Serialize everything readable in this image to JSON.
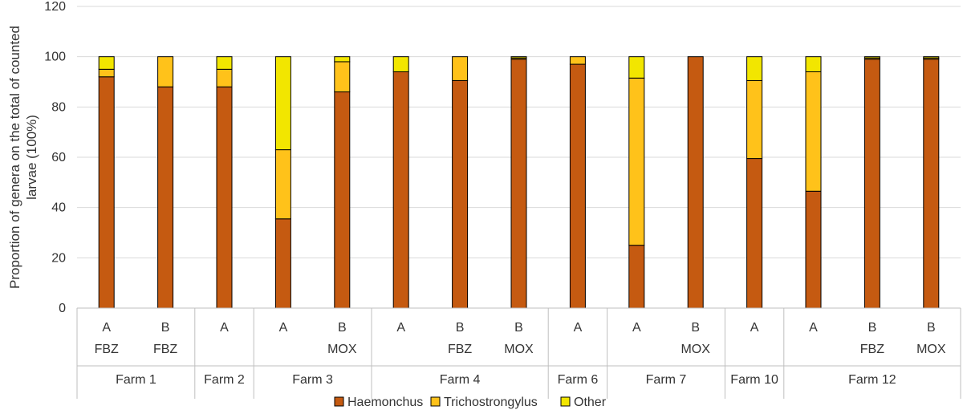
{
  "chart_data": {
    "type": "bar",
    "stacked": true,
    "ylabel": "Proportion of genera on the total of counted larvae (100%)",
    "ylabel_lines": [
      "Proportion of genera on the total of counted",
      "larvae (100%)"
    ],
    "ylim": [
      0,
      120
    ],
    "yticks": [
      0,
      20,
      40,
      60,
      80,
      100,
      120
    ],
    "grid": true,
    "legend_position": "bottom",
    "groups": [
      {
        "name": "Farm 1",
        "bars": [
          {
            "label": "A",
            "sub": "FBZ"
          },
          {
            "label": "B",
            "sub": "FBZ"
          }
        ]
      },
      {
        "name": "Farm 2",
        "bars": [
          {
            "label": "A",
            "sub": ""
          }
        ]
      },
      {
        "name": "Farm 3",
        "bars": [
          {
            "label": "A",
            "sub": ""
          },
          {
            "label": "B",
            "sub": "MOX"
          }
        ]
      },
      {
        "name": "Farm 4",
        "bars": [
          {
            "label": "A",
            "sub": ""
          },
          {
            "label": "B",
            "sub": "FBZ"
          },
          {
            "label": "B",
            "sub": "MOX"
          }
        ]
      },
      {
        "name": "Farm 6",
        "bars": [
          {
            "label": "A",
            "sub": ""
          }
        ]
      },
      {
        "name": "Farm 7",
        "bars": [
          {
            "label": "A",
            "sub": ""
          },
          {
            "label": "B",
            "sub": "MOX"
          }
        ]
      },
      {
        "name": "Farm 10",
        "bars": [
          {
            "label": "A",
            "sub": ""
          }
        ]
      },
      {
        "name": "Farm 12",
        "bars": [
          {
            "label": "A",
            "sub": ""
          },
          {
            "label": "B",
            "sub": "FBZ"
          },
          {
            "label": "B",
            "sub": "MOX"
          }
        ]
      }
    ],
    "series": [
      {
        "name": "Haemonchus",
        "color": "#C55A11",
        "values": [
          92,
          88,
          88,
          35.5,
          86,
          94,
          90.5,
          99,
          97,
          25,
          100,
          59.5,
          46.5,
          99,
          99
        ]
      },
      {
        "name": "Trichostrongylus",
        "color": "#FFC21A",
        "values": [
          3,
          12,
          7,
          27.5,
          12,
          0,
          9.5,
          0.5,
          3,
          66.5,
          0,
          31,
          47.5,
          0.5,
          0.5
        ]
      },
      {
        "name": "Other",
        "color": "#F2E600",
        "values": [
          5,
          0,
          5,
          37,
          2,
          6,
          0,
          0.5,
          0,
          8.5,
          0,
          9.5,
          6,
          0.5,
          0.5
        ]
      }
    ]
  }
}
